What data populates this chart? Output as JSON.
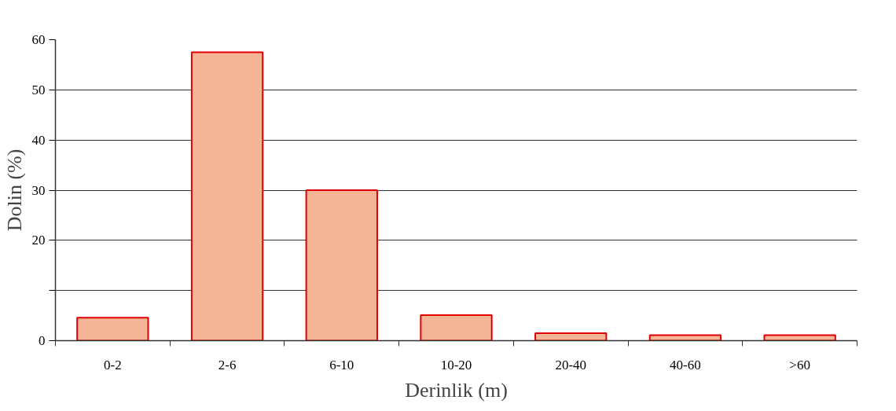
{
  "chart_data": {
    "type": "bar",
    "xlabel": "Derinlik (m)",
    "ylabel": "Dolin (%)",
    "categories": [
      "0-2",
      "2-6",
      "6-10",
      "10-20",
      "20-40",
      "40-60",
      ">60"
    ],
    "values": [
      4.6,
      57.5,
      30,
      5.1,
      1.5,
      1.1,
      1.1
    ],
    "color": "#f4b496",
    "ylim": [
      0,
      60
    ],
    "yticks": [
      0,
      {
        "value": 10,
        "label": null
      },
      20,
      30,
      40,
      50,
      60
    ],
    "grid": "y"
  }
}
